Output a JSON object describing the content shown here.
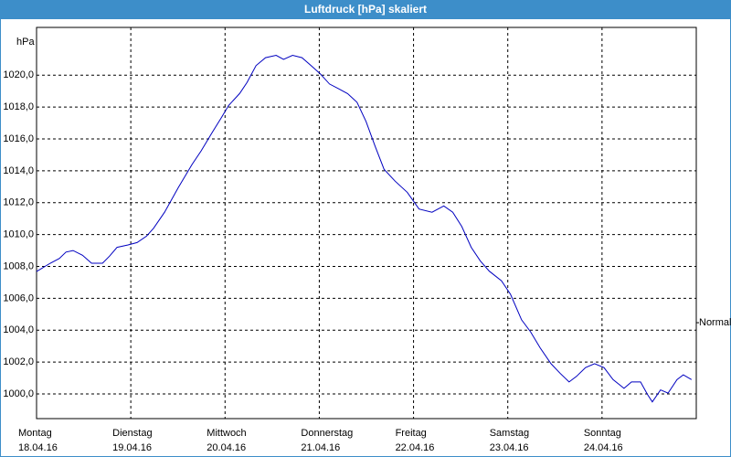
{
  "chart_data": {
    "type": "line",
    "title": "Luftdruck [hPa] skaliert",
    "y_unit": "hPa",
    "xlim": [
      0,
      168
    ],
    "ylim": [
      998.45,
      1023
    ],
    "xticks": [
      {
        "value": 0,
        "label": "Montag",
        "date": "18.04.16"
      },
      {
        "value": 24,
        "label": "Dienstag",
        "date": "19.04.16"
      },
      {
        "value": 48,
        "label": "Mittwoch",
        "date": "20.04.16"
      },
      {
        "value": 72,
        "label": "Donnerstag",
        "date": "21.04.16"
      },
      {
        "value": 96,
        "label": "Freitag",
        "date": "22.04.16"
      },
      {
        "value": 120,
        "label": "Samstag",
        "date": "23.04.16"
      },
      {
        "value": 144,
        "label": "Sonntag",
        "date": "24.04.16"
      }
    ],
    "yticks": [
      {
        "value": 1000,
        "label": "1000,0"
      },
      {
        "value": 1002,
        "label": "1002,0"
      },
      {
        "value": 1004,
        "label": "1004,0"
      },
      {
        "value": 1006,
        "label": "1006,0"
      },
      {
        "value": 1008,
        "label": "1008,0"
      },
      {
        "value": 1010,
        "label": "1010,0"
      },
      {
        "value": 1012,
        "label": "1012,0"
      },
      {
        "value": 1014,
        "label": "1014,0"
      },
      {
        "value": 1016,
        "label": "1016,0"
      },
      {
        "value": 1018,
        "label": "1018,0"
      },
      {
        "value": 1020,
        "label": "1020,0"
      }
    ],
    "grid": true,
    "annotation": {
      "text": "Normal",
      "value": 1004.47
    },
    "series": [
      {
        "name": "Luftdruck",
        "color": "#0000c0",
        "x": [
          0,
          3.5,
          5.8,
          7.5,
          9.3,
          11.7,
          14,
          16.8,
          18.6,
          20.5,
          23.3,
          25.6,
          28,
          29.8,
          32.6,
          36.1,
          39.6,
          41.9,
          44.7,
          47.1,
          48.9,
          51.7,
          53.6,
          55.9,
          58.3,
          61,
          62.9,
          65.2,
          67.6,
          69.9,
          72.2,
          74.6,
          76.9,
          79.2,
          81.6,
          83.9,
          86.2,
          88.5,
          91.3,
          94.4,
          97.4,
          100.7,
          103.7,
          106,
          108.3,
          110.7,
          113,
          115.3,
          118.4,
          120.7,
          123.5,
          125.8,
          128.2,
          131,
          133.3,
          135.6,
          137.5,
          139.8,
          142.1,
          144.5,
          146.8,
          149.6,
          151.5,
          153.8,
          155.6,
          156.8,
          158.9,
          160.8,
          163.1,
          164.7,
          166.8
        ],
        "values": [
          1007.68,
          1008.2,
          1008.5,
          1008.9,
          1009.0,
          1008.7,
          1008.2,
          1008.2,
          1008.65,
          1009.2,
          1009.35,
          1009.5,
          1009.9,
          1010.4,
          1011.4,
          1012.95,
          1014.4,
          1015.25,
          1016.4,
          1017.35,
          1018.1,
          1018.85,
          1019.55,
          1020.6,
          1021.1,
          1021.25,
          1021.0,
          1021.25,
          1021.1,
          1020.6,
          1020.1,
          1019.45,
          1019.15,
          1018.85,
          1018.3,
          1017.1,
          1015.55,
          1014.1,
          1013.35,
          1012.65,
          1011.6,
          1011.4,
          1011.8,
          1011.4,
          1010.5,
          1009.2,
          1008.35,
          1007.7,
          1007.1,
          1006.25,
          1004.65,
          1003.9,
          1002.9,
          1001.9,
          1001.3,
          1000.75,
          1001.1,
          1001.65,
          1001.9,
          1001.65,
          1000.9,
          1000.35,
          1000.75,
          1000.75,
          999.95,
          999.5,
          1000.25,
          1000.05,
          1000.9,
          1001.2,
          1000.9
        ]
      }
    ]
  }
}
